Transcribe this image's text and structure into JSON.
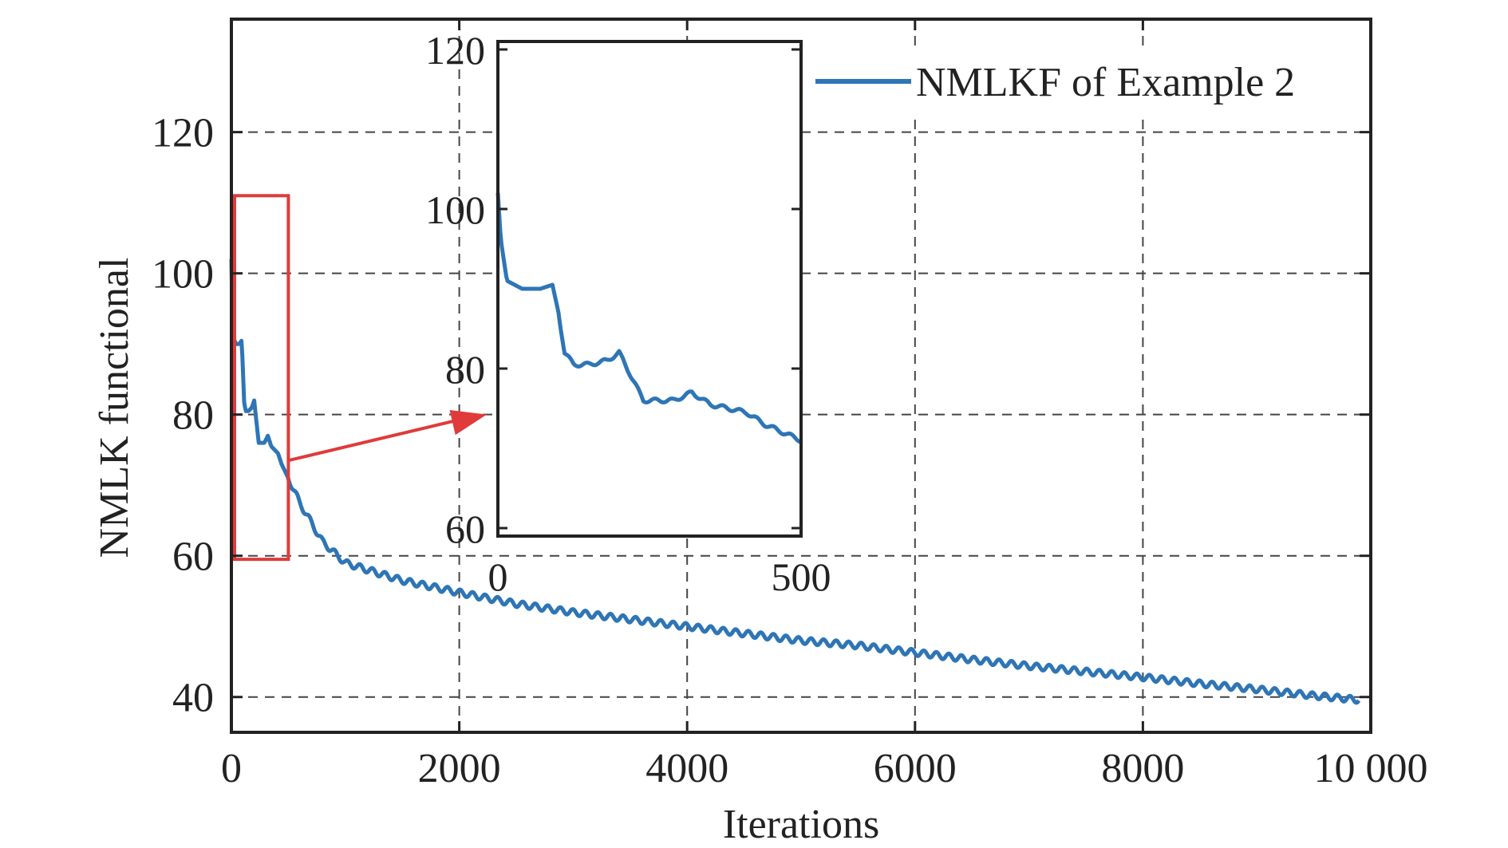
{
  "chart_data": {
    "type": "line",
    "xlabel": "Iterations",
    "ylabel": "NMLK functional",
    "xlim": [
      0,
      10000
    ],
    "ylim": [
      35,
      136
    ],
    "xticks": [
      {
        "value": 0,
        "label": "0"
      },
      {
        "value": 2000,
        "label": "2000"
      },
      {
        "value": 4000,
        "label": "4000"
      },
      {
        "value": 6000,
        "label": "6000"
      },
      {
        "value": 8000,
        "label": "8000"
      },
      {
        "value": 10000,
        "label": "10 000"
      }
    ],
    "yticks": [
      {
        "value": 40,
        "label": "40"
      },
      {
        "value": 60,
        "label": "60"
      },
      {
        "value": 80,
        "label": "80"
      },
      {
        "value": 100,
        "label": "100"
      },
      {
        "value": 120,
        "label": "120"
      }
    ],
    "grid": true,
    "legend_position": "top-right",
    "series": [
      {
        "name": "NMLKF of Example 2",
        "color": "#2e75b6",
        "x": [
          0,
          5,
          15,
          40,
          70,
          90,
          100,
          110,
          125,
          150,
          180,
          200,
          220,
          240,
          260,
          290,
          320,
          350,
          380,
          410,
          440,
          470,
          500,
          600,
          800,
          1000,
          1500,
          2000,
          2500,
          3000,
          3500,
          4000,
          4500,
          5000,
          5500,
          6000,
          6500,
          7000,
          7500,
          8000,
          8500,
          9000,
          9500,
          9900
        ],
        "y": [
          102,
          96,
          91,
          90,
          90,
          90.5,
          87,
          82,
          80.5,
          80.5,
          81,
          82,
          79,
          76,
          76,
          76,
          77,
          75.5,
          75,
          74.5,
          73,
          72,
          71,
          67.5,
          62,
          59,
          56.5,
          54.8,
          53.2,
          52,
          51,
          50,
          49,
          48,
          47.3,
          46.3,
          45.3,
          44.4,
          43.6,
          42.8,
          41.9,
          41.1,
          40.2,
          39.6
        ]
      }
    ],
    "zoom_box": {
      "x": [
        0,
        500
      ],
      "y": [
        59.5,
        111
      ]
    },
    "inset": {
      "xlim": [
        0,
        500
      ],
      "ylim": [
        59,
        121
      ],
      "xticks": [
        {
          "value": 0,
          "label": "0"
        },
        {
          "value": 500,
          "label": "500"
        }
      ],
      "yticks": [
        {
          "value": 60,
          "label": "60"
        },
        {
          "value": 80,
          "label": "80"
        },
        {
          "value": 100,
          "label": "100"
        },
        {
          "value": 120,
          "label": "120"
        }
      ]
    },
    "colors": {
      "line": "#2e75b6",
      "zoom": "#e03a3a",
      "axis": "#222222",
      "grid": "#444444"
    }
  }
}
